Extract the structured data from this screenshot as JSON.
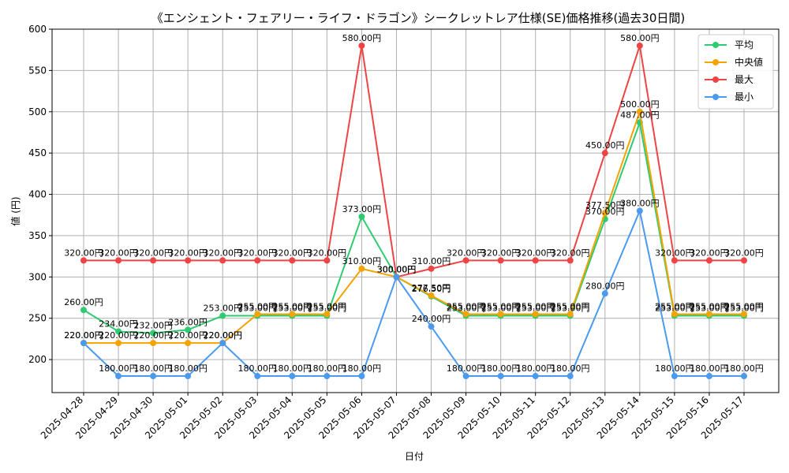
{
  "chart_data": {
    "type": "line",
    "title": "《エンシェント・フェアリー・ライフ・ドラゴン》シークレットレア仕様(SE)価格推移(過去30日間)",
    "xlabel": "日付",
    "ylabel": "値 (円)",
    "ylim": [
      160,
      600
    ],
    "yticks": [
      200,
      250,
      300,
      350,
      400,
      450,
      500,
      550,
      600
    ],
    "grid": true,
    "legend_position": "top-right",
    "value_suffix": "円",
    "categories": [
      "2025-04-28",
      "2025-04-29",
      "2025-04-30",
      "2025-05-01",
      "2025-05-02",
      "2025-05-03",
      "2025-05-04",
      "2025-05-05",
      "2025-05-06",
      "2025-05-07",
      "2025-05-08",
      "2025-05-09",
      "2025-05-10",
      "2025-05-11",
      "2025-05-12",
      "2025-05-13",
      "2025-05-14",
      "2025-05-15",
      "2025-05-16",
      "2025-05-17"
    ],
    "series": [
      {
        "name": "平均",
        "color": "#2ecc71",
        "values": [
          260,
          234,
          232,
          236,
          253,
          253,
          253,
          253,
          373,
          300,
          276.5,
          253,
          253,
          253,
          253,
          370,
          487,
          253,
          253,
          253
        ]
      },
      {
        "name": "中央値",
        "color": "#f5a300",
        "values": [
          220,
          220,
          220,
          220,
          220,
          255,
          255,
          255,
          310,
          300,
          277.5,
          255,
          255,
          255,
          255,
          377.5,
          500,
          255,
          255,
          255
        ]
      },
      {
        "name": "最大",
        "color": "#ef4444",
        "values": [
          320,
          320,
          320,
          320,
          320,
          320,
          320,
          320,
          580,
          300,
          310,
          320,
          320,
          320,
          320,
          450,
          580,
          320,
          320,
          320
        ]
      },
      {
        "name": "最小",
        "color": "#4a9af0",
        "values": [
          220,
          180,
          180,
          180,
          220,
          180,
          180,
          180,
          180,
          300,
          240,
          180,
          180,
          180,
          180,
          280,
          380,
          180,
          180,
          180
        ]
      }
    ]
  }
}
